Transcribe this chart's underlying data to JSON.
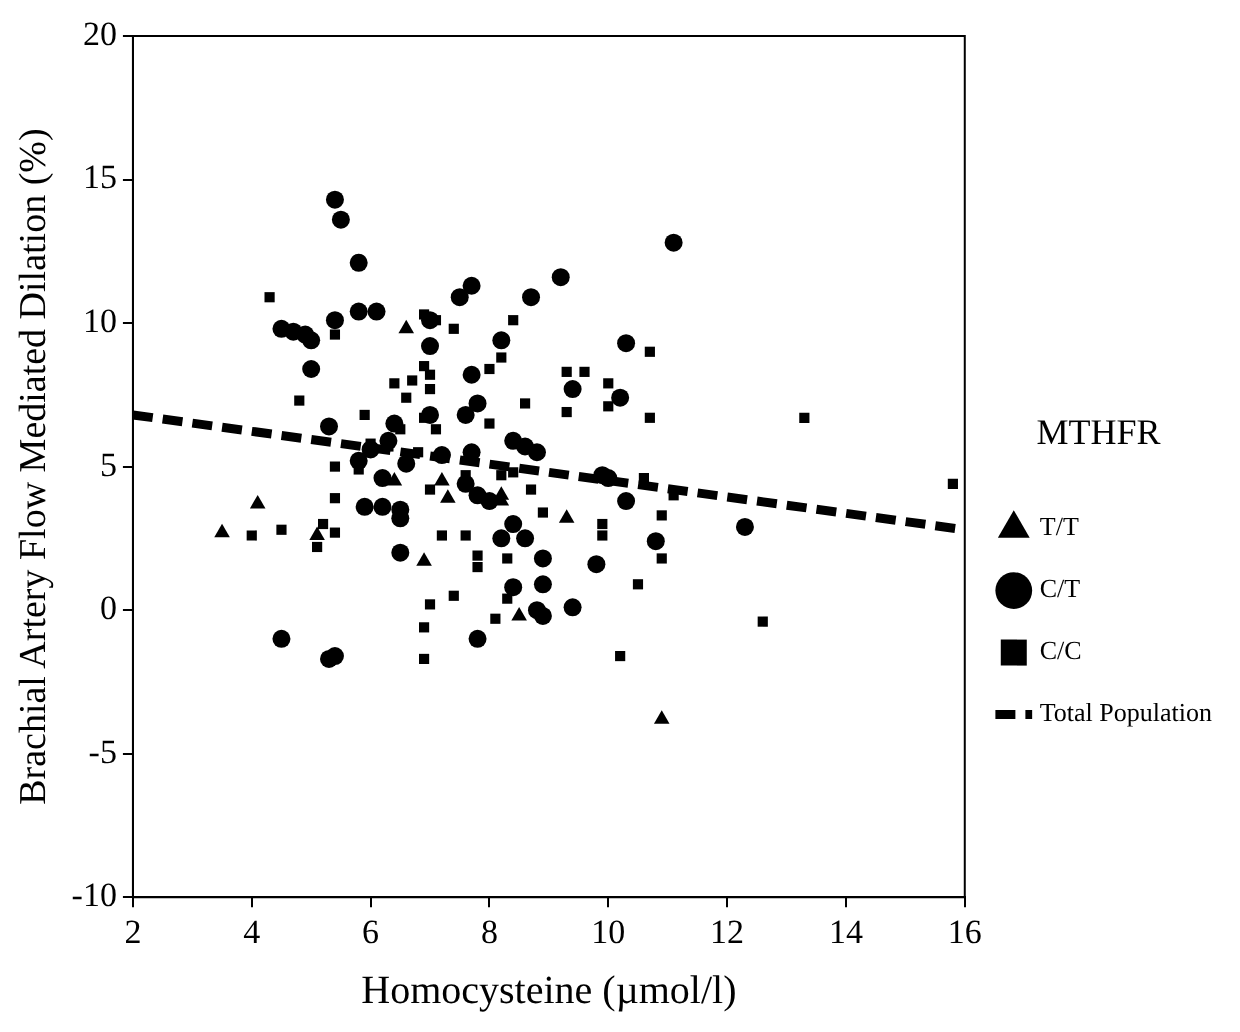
{
  "chart_data": {
    "type": "scatter",
    "xlabel": "Homocysteine (µmol/l)",
    "ylabel": "Brachial Artery Flow Mediated Dilation (%)",
    "legend_title": "MTHFR",
    "legend": "right",
    "grid": false,
    "xlim": [
      2,
      16
    ],
    "xticks": [
      2,
      4,
      6,
      8,
      10,
      12,
      14,
      16
    ],
    "ylim": [
      -10,
      20
    ],
    "yticks": [
      -10,
      -5,
      0,
      5,
      10,
      15,
      20
    ],
    "series": [
      {
        "name": "T/T",
        "color": "#000000",
        "marker": "triangle",
        "x": [
          3.5,
          4.1,
          5.1,
          6.6,
          6.9,
          7.2,
          7.3,
          8.2,
          8.5,
          9.3,
          10.9,
          6.4,
          8.2
        ],
        "values": [
          2.7,
          3.7,
          2.6,
          9.8,
          1.7,
          4.5,
          3.9,
          3.8,
          -0.2,
          3.2,
          -3.8,
          4.5,
          4.0
        ]
      },
      {
        "name": "C/T",
        "color": "#000000",
        "marker": "circle",
        "x": [
          5.4,
          5.5,
          5.8,
          11.1,
          4.5,
          4.7,
          4.9,
          5.0,
          5.4,
          5.8,
          6.1,
          7.0,
          7.0,
          7.5,
          7.7,
          8.2,
          8.7,
          9.2,
          10.3,
          5.0,
          5.3,
          5.8,
          5.9,
          6.2,
          6.2,
          6.5,
          6.5,
          6.5,
          6.4,
          6.6,
          7.0,
          7.2,
          7.6,
          7.7,
          7.8,
          7.7,
          7.6,
          7.8,
          8.0,
          8.4,
          8.6,
          8.8,
          8.2,
          8.6,
          8.4,
          8.9,
          8.9,
          8.8,
          8.9,
          9.4,
          9.4,
          9.8,
          9.9,
          10.0,
          10.3,
          10.2,
          10.8,
          12.3,
          4.5,
          5.3,
          5.4,
          7.8,
          8.4,
          6.3,
          6.0
        ],
        "values": [
          14.3,
          13.6,
          12.1,
          12.8,
          9.8,
          9.7,
          9.6,
          9.4,
          10.1,
          10.4,
          10.4,
          10.1,
          9.2,
          10.9,
          11.3,
          9.4,
          10.9,
          11.6,
          9.3,
          8.4,
          6.4,
          5.2,
          3.6,
          3.6,
          4.6,
          3.5,
          3.2,
          2.0,
          6.5,
          5.1,
          6.8,
          5.4,
          6.8,
          8.2,
          7.2,
          5.5,
          4.4,
          4.0,
          3.8,
          5.9,
          5.7,
          5.5,
          2.5,
          2.5,
          0.8,
          1.8,
          0.9,
          0.0,
          -0.2,
          0.1,
          7.7,
          1.6,
          4.7,
          4.6,
          3.8,
          7.4,
          2.4,
          2.9,
          -1.0,
          -1.7,
          -1.6,
          -1.0,
          3.0,
          5.9,
          5.6
        ]
      },
      {
        "name": "C/C",
        "color": "#000000",
        "marker": "square",
        "x": [
          4.3,
          4.8,
          5.4,
          4.0,
          4.5,
          5.1,
          5.2,
          5.4,
          5.4,
          5.4,
          5.8,
          5.9,
          6.0,
          6.3,
          6.4,
          6.5,
          6.6,
          6.7,
          6.9,
          7.0,
          7.0,
          6.9,
          7.1,
          7.4,
          6.9,
          7.1,
          6.8,
          7.0,
          7.2,
          7.6,
          7.8,
          7.8,
          7.4,
          7.0,
          6.9,
          6.9,
          8.1,
          8.3,
          8.3,
          8.0,
          8.0,
          8.2,
          8.4,
          8.2,
          8.4,
          8.7,
          8.6,
          8.9,
          9.3,
          9.3,
          9.6,
          9.9,
          9.9,
          10.0,
          10.0,
          10.5,
          10.6,
          10.7,
          10.7,
          10.9,
          10.9,
          11.1,
          10.2,
          12.6,
          13.3,
          15.8,
          7.6
        ],
        "values": [
          10.9,
          7.3,
          9.6,
          2.6,
          2.8,
          2.2,
          3.0,
          2.7,
          3.9,
          5.0,
          4.9,
          6.8,
          5.8,
          5.7,
          7.9,
          6.3,
          7.4,
          8.0,
          8.5,
          7.7,
          8.2,
          10.3,
          10.1,
          9.8,
          6.7,
          6.3,
          5.5,
          4.2,
          2.6,
          2.6,
          1.9,
          1.5,
          0.5,
          0.2,
          -0.6,
          -1.7,
          -0.3,
          0.4,
          1.8,
          6.5,
          8.4,
          8.8,
          10.1,
          4.7,
          4.8,
          4.2,
          7.2,
          3.4,
          6.9,
          8.3,
          8.3,
          2.6,
          3.0,
          7.9,
          7.1,
          0.9,
          4.6,
          6.7,
          9.0,
          3.3,
          1.8,
          4.0,
          -1.6,
          -0.4,
          6.7,
          4.4,
          4.7
        ]
      },
      {
        "name": "Total Population",
        "type": "line",
        "color": "#000000",
        "marker": "none",
        "line_style": "dashed",
        "x": [
          2,
          16
        ],
        "values": [
          6.8,
          2.8
        ]
      }
    ]
  }
}
